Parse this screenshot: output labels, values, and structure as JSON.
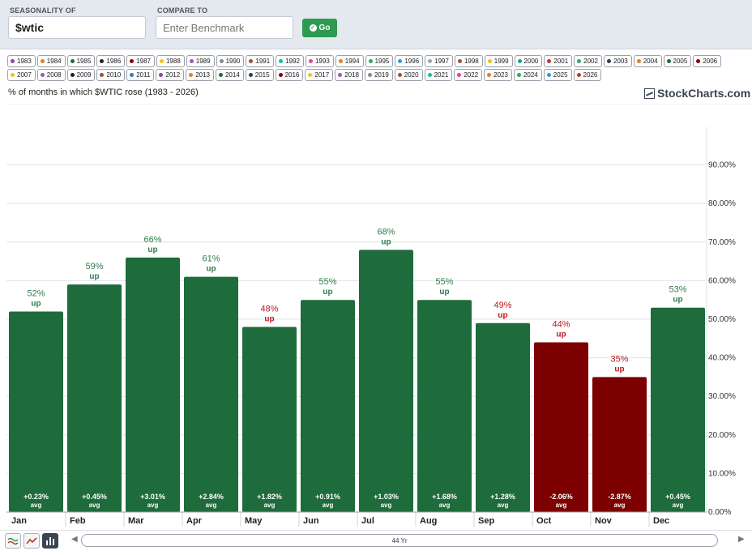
{
  "toolbar": {
    "seasonality_label": "SEASONALITY OF",
    "symbol_value": "$wtic",
    "compare_label": "COMPARE TO",
    "compare_placeholder": "Enter Benchmark",
    "go_label": "Go"
  },
  "legend_years": [
    {
      "year": "1983",
      "color": "#8e44ad"
    },
    {
      "year": "1984",
      "color": "#e67e22"
    },
    {
      "year": "1985",
      "color": "#1e6b3c"
    },
    {
      "year": "1986",
      "color": "#222222"
    },
    {
      "year": "1987",
      "color": "#8b0000"
    },
    {
      "year": "1988",
      "color": "#f1c40f"
    },
    {
      "year": "1989",
      "color": "#9b59b6"
    },
    {
      "year": "1990",
      "color": "#7f8c8d"
    },
    {
      "year": "1991",
      "color": "#a0522d"
    },
    {
      "year": "1992",
      "color": "#1abc9c"
    },
    {
      "year": "1993",
      "color": "#e84393"
    },
    {
      "year": "1994",
      "color": "#e67e22"
    },
    {
      "year": "1995",
      "color": "#27ae60"
    },
    {
      "year": "1996",
      "color": "#3498db"
    },
    {
      "year": "1997",
      "color": "#95a5a6"
    },
    {
      "year": "1998",
      "color": "#a0522d"
    },
    {
      "year": "1999",
      "color": "#f1c40f"
    },
    {
      "year": "2000",
      "color": "#16a085"
    },
    {
      "year": "2001",
      "color": "#c0392b"
    },
    {
      "year": "2002",
      "color": "#27ae60"
    },
    {
      "year": "2003",
      "color": "#2c3e50"
    },
    {
      "year": "2004",
      "color": "#e67e22"
    },
    {
      "year": "2005",
      "color": "#1e6b3c"
    },
    {
      "year": "2006",
      "color": "#8b0000"
    },
    {
      "year": "2007",
      "color": "#f1c40f"
    },
    {
      "year": "2008",
      "color": "#9b59b6"
    },
    {
      "year": "2009",
      "color": "#222222"
    },
    {
      "year": "2010",
      "color": "#a0522d"
    },
    {
      "year": "2011",
      "color": "#2980b9"
    },
    {
      "year": "2012",
      "color": "#8e44ad"
    },
    {
      "year": "2013",
      "color": "#e67e22"
    },
    {
      "year": "2014",
      "color": "#1e6b3c"
    },
    {
      "year": "2015",
      "color": "#2c3e50"
    },
    {
      "year": "2016",
      "color": "#8b0000"
    },
    {
      "year": "2017",
      "color": "#f1c40f"
    },
    {
      "year": "2018",
      "color": "#9b59b6"
    },
    {
      "year": "2019",
      "color": "#7f8c8d"
    },
    {
      "year": "2020",
      "color": "#a0522d"
    },
    {
      "year": "2021",
      "color": "#1abc9c"
    },
    {
      "year": "2022",
      "color": "#e84393"
    },
    {
      "year": "2023",
      "color": "#e67e22"
    },
    {
      "year": "2024",
      "color": "#27ae60"
    },
    {
      "year": "2025",
      "color": "#3498db"
    },
    {
      "year": "2026",
      "color": "#c0392b"
    }
  ],
  "brand": "StockCharts.com",
  "range_label": "44 Yr",
  "chart_data": {
    "type": "bar",
    "title": "% of months in which $WTIC rose (1983 - 2026)",
    "categories": [
      "Jan",
      "Feb",
      "Mar",
      "Apr",
      "May",
      "Jun",
      "Jul",
      "Aug",
      "Sep",
      "Oct",
      "Nov",
      "Dec"
    ],
    "series": [
      {
        "values": [
          52,
          59,
          66,
          61,
          48,
          55,
          68,
          55,
          49,
          44,
          35,
          53
        ]
      }
    ],
    "pct_labels": [
      "52%",
      "59%",
      "66%",
      "61%",
      "48%",
      "55%",
      "68%",
      "55%",
      "49%",
      "44%",
      "35%",
      "53%"
    ],
    "up_label": "up",
    "avg_values": [
      "+0.23%",
      "+0.45%",
      "+3.01%",
      "+2.84%",
      "+1.82%",
      "+0.91%",
      "+1.03%",
      "+1.68%",
      "+1.28%",
      "-2.06%",
      "-2.87%",
      "+0.45%"
    ],
    "avg_label": "avg",
    "ylim": [
      0,
      100
    ],
    "yticks": [
      0,
      10,
      20,
      30,
      40,
      50,
      60,
      70,
      80,
      90
    ],
    "ytick_labels": [
      "0.00%",
      "10.00%",
      "20.00%",
      "30.00%",
      "40.00%",
      "50.00%",
      "60.00%",
      "70.00%",
      "80.00%",
      "90.00%"
    ],
    "y_axis_position": "right",
    "grid": true,
    "colors": {
      "positive_bar": "#1e6b3c",
      "negative_bar": "#7d0000",
      "positive_label": "#2e7d4a",
      "negative_label": "#c0161d"
    }
  }
}
